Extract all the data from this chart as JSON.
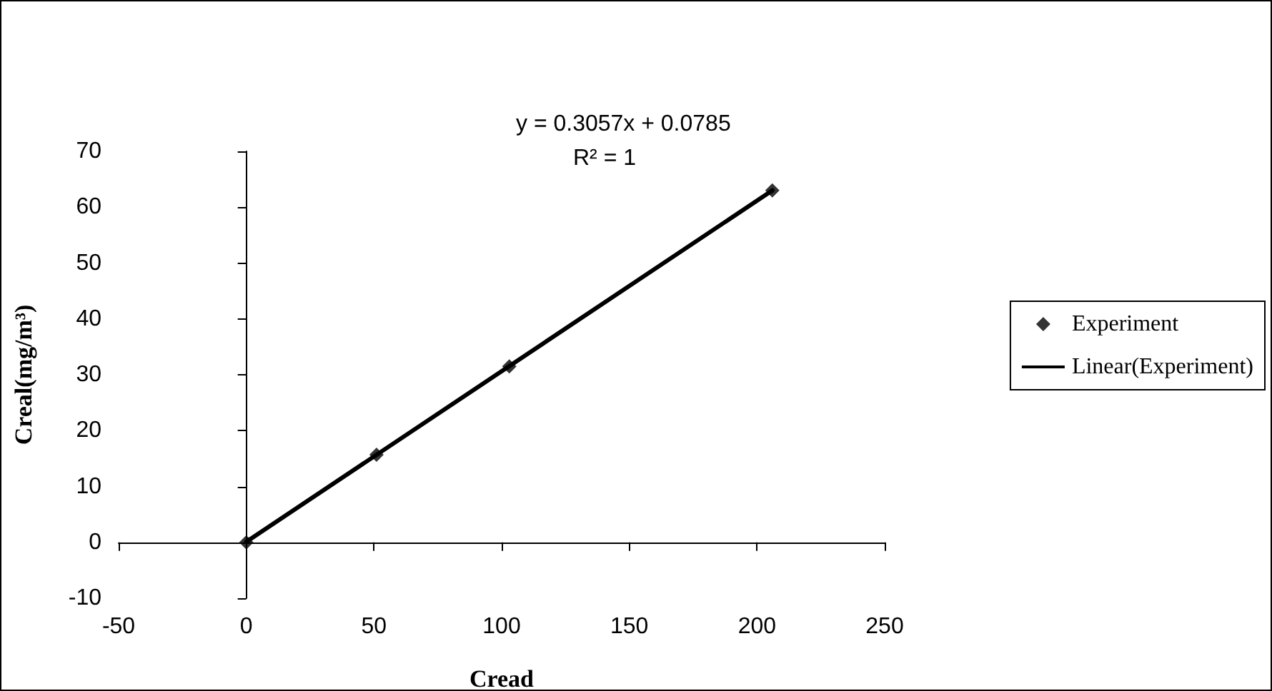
{
  "chart_data": {
    "type": "scatter",
    "xlabel": "Cread",
    "ylabel": "Creal(mg/m³)",
    "xlim": [
      -50,
      250
    ],
    "xticks": [
      -50,
      0,
      50,
      100,
      150,
      200,
      250
    ],
    "ylim": [
      -10,
      70
    ],
    "yticks": [
      -10,
      0,
      10,
      20,
      30,
      40,
      50,
      60,
      70
    ],
    "legend": "right",
    "annotations": [
      "y = 0.3057x + 0.0785",
      "R² = 1"
    ],
    "series": [
      {
        "name": "Experiment",
        "type": "scatter",
        "marker": "diamond",
        "color": "#000000",
        "x": [
          0,
          51,
          103,
          206
        ],
        "values": [
          0,
          15.7,
          31.5,
          63
        ]
      },
      {
        "name": "Linear(Experiment)",
        "type": "line",
        "marker": "none",
        "line_style": "solid",
        "color": "#000000",
        "x": [
          0,
          206
        ],
        "values": [
          0.1,
          63
        ]
      }
    ]
  }
}
